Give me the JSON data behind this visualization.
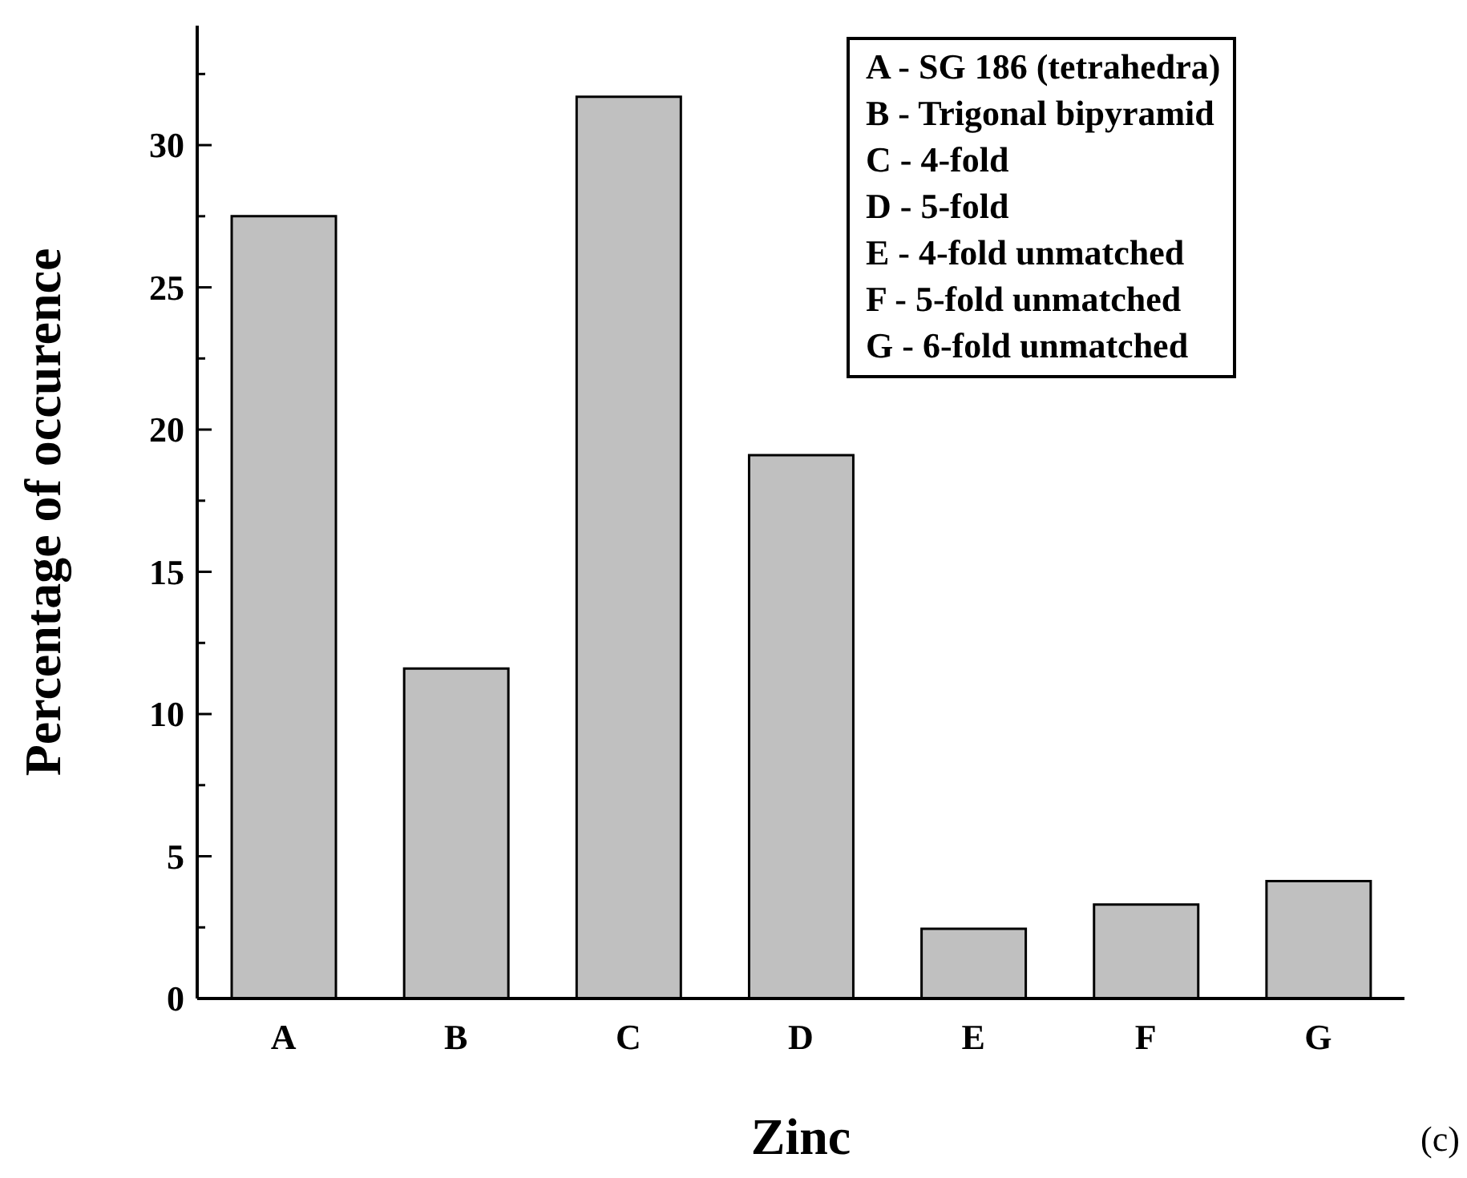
{
  "chart_data": {
    "type": "bar",
    "xlabel": "Zinc",
    "ylabel": "Percentage of occurence",
    "categories": [
      "A",
      "B",
      "C",
      "D",
      "E",
      "F",
      "G"
    ],
    "values": [
      27.5,
      11.6,
      31.7,
      19.1,
      2.45,
      3.3,
      4.13
    ],
    "color": "#c0c0c0",
    "ylim": [
      0,
      34.2
    ],
    "yticks": [
      0,
      {
        "value": 2.5,
        "label": null
      },
      5,
      {
        "value": 7.5,
        "label": null
      },
      10,
      {
        "value": 12.5,
        "label": null
      },
      15,
      {
        "value": 17.5,
        "label": null
      },
      20,
      {
        "value": 22.5,
        "label": null
      },
      25,
      {
        "value": 27.5,
        "label": null
      },
      30,
      {
        "value": 32.5,
        "label": null
      }
    ],
    "grid": false,
    "annotations": [
      "A - SG 186 (tetrahedra)",
      "B - Trigonal bipyramid",
      "C - 4-fold",
      "D - 5-fold",
      "E - 4-fold unmatched",
      "F - 5-fold unmatched",
      "G - 6-fold unmatched",
      "(c)"
    ]
  }
}
